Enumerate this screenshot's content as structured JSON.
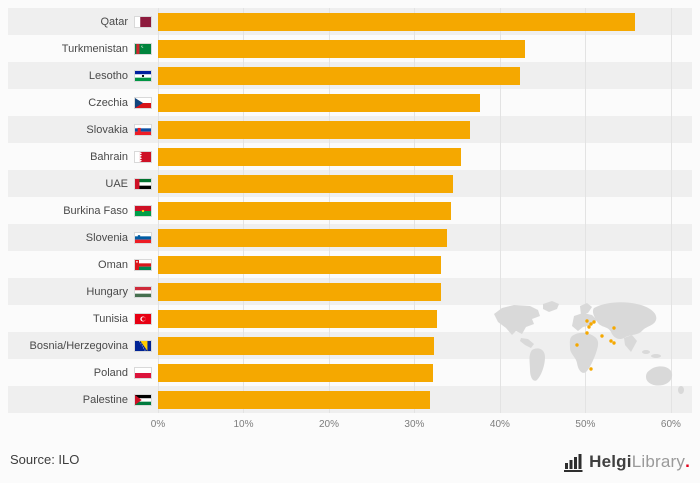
{
  "chart_data": {
    "type": "bar",
    "orientation": "horizontal",
    "title": "",
    "xlabel": "",
    "ylabel": "",
    "xlim": [
      0,
      60
    ],
    "plot_max": 62,
    "grid": true,
    "legend": false,
    "bar_color": "#f5a800",
    "stripe_color": "#efefef",
    "x_ticks": [
      "0%",
      "10%",
      "20%",
      "30%",
      "40%",
      "50%",
      "60%"
    ],
    "x_tick_values": [
      0,
      10,
      20,
      30,
      40,
      50,
      60
    ],
    "categories": [
      "Qatar",
      "Turkmenistan",
      "Lesotho",
      "Czechia",
      "Slovakia",
      "Bahrain",
      "UAE",
      "Burkina Faso",
      "Slovenia",
      "Oman",
      "Hungary",
      "Tunisia",
      "Bosnia/Herzegovina",
      "Poland",
      "Palestine"
    ],
    "values": [
      55.4,
      42.6,
      42.0,
      37.4,
      36.2,
      35.2,
      34.3,
      34.0,
      33.5,
      32.9,
      32.8,
      32.4,
      32.1,
      31.9,
      31.6
    ],
    "flags": [
      {
        "name": "qatar-flag-icon",
        "rects": [
          [
            0,
            0,
            18,
            12,
            "#8d1b3d"
          ],
          [
            0,
            0,
            6,
            12,
            "#ffffff"
          ]
        ],
        "tris": [
          [
            [
              [
                6,
                0
              ],
              [
                8.5,
                1.5
              ],
              [
                6,
                3
              ]
            ],
            "#8d1b3d"
          ],
          [
            [
              [
                6,
                3
              ],
              [
                8.5,
                4.5
              ],
              [
                6,
                6
              ]
            ],
            "#8d1b3d"
          ],
          [
            [
              [
                6,
                6
              ],
              [
                8.5,
                7.5
              ],
              [
                6,
                9
              ]
            ],
            "#8d1b3d"
          ],
          [
            [
              [
                6,
                9
              ],
              [
                8.5,
                10.5
              ],
              [
                6,
                12
              ]
            ],
            "#8d1b3d"
          ]
        ]
      },
      {
        "name": "turkmenistan-flag-icon",
        "rects": [
          [
            0,
            0,
            18,
            12,
            "#00843d"
          ],
          [
            1.5,
            0,
            3.5,
            12,
            "#d22630"
          ]
        ],
        "dots": [
          [
            8.5,
            3,
            1.3,
            "#ffffff"
          ],
          [
            9.3,
            2.6,
            1.3,
            "#00843d"
          ]
        ]
      },
      {
        "name": "lesotho-flag-icon",
        "rects": [
          [
            0,
            0,
            18,
            4,
            "#00209f"
          ],
          [
            0,
            4,
            18,
            4,
            "#ffffff"
          ],
          [
            0,
            8,
            18,
            4,
            "#009543"
          ]
        ],
        "dots": [
          [
            9,
            6,
            1.3,
            "#000000"
          ]
        ]
      },
      {
        "name": "czechia-flag-icon",
        "rects": [
          [
            0,
            0,
            18,
            6,
            "#ffffff"
          ],
          [
            0,
            6,
            18,
            6,
            "#d7141a"
          ]
        ],
        "tris": [
          [
            [
              [
                0,
                0
              ],
              [
                9,
                6
              ],
              [
                0,
                12
              ]
            ],
            "#11457e"
          ]
        ]
      },
      {
        "name": "slovakia-flag-icon",
        "rects": [
          [
            0,
            0,
            18,
            4,
            "#ffffff"
          ],
          [
            0,
            4,
            18,
            4,
            "#0b4ea2"
          ],
          [
            0,
            8,
            18,
            4,
            "#ee1c25"
          ],
          [
            3,
            3.5,
            3.5,
            5,
            "#ee1c25"
          ]
        ]
      },
      {
        "name": "bahrain-flag-icon",
        "rects": [
          [
            0,
            0,
            18,
            12,
            "#ce1126"
          ],
          [
            0,
            0,
            5.5,
            12,
            "#ffffff"
          ]
        ],
        "tris": [
          [
            [
              [
                5.5,
                0
              ],
              [
                8,
                1.5
              ],
              [
                5.5,
                3
              ]
            ],
            "#ffffff"
          ],
          [
            [
              [
                5.5,
                3
              ],
              [
                8,
                4.5
              ],
              [
                5.5,
                6
              ]
            ],
            "#ffffff"
          ],
          [
            [
              [
                5.5,
                6
              ],
              [
                8,
                7.5
              ],
              [
                5.5,
                9
              ]
            ],
            "#ffffff"
          ],
          [
            [
              [
                5.5,
                9
              ],
              [
                8,
                10.5
              ],
              [
                5.5,
                12
              ]
            ],
            "#ffffff"
          ]
        ]
      },
      {
        "name": "uae-flag-icon",
        "rects": [
          [
            0,
            0,
            18,
            4,
            "#00732f"
          ],
          [
            0,
            4,
            18,
            4,
            "#ffffff"
          ],
          [
            0,
            8,
            18,
            4,
            "#000000"
          ],
          [
            0,
            0,
            5,
            12,
            "#ce1126"
          ]
        ]
      },
      {
        "name": "burkina-faso-flag-icon",
        "rects": [
          [
            0,
            0,
            18,
            6,
            "#ce1126"
          ],
          [
            0,
            6,
            18,
            6,
            "#009e49"
          ]
        ],
        "dots": [
          [
            9,
            6,
            1.4,
            "#fcd116"
          ]
        ]
      },
      {
        "name": "slovenia-flag-icon",
        "rects": [
          [
            0,
            0,
            18,
            4,
            "#ffffff"
          ],
          [
            0,
            4,
            18,
            4,
            "#005da4"
          ],
          [
            0,
            8,
            18,
            4,
            "#ed1c24"
          ],
          [
            3.2,
            2.6,
            2.6,
            3.4,
            "#005da4"
          ]
        ]
      },
      {
        "name": "oman-flag-icon",
        "rects": [
          [
            0,
            0,
            18,
            4,
            "#ffffff"
          ],
          [
            0,
            4,
            18,
            4,
            "#db161b"
          ],
          [
            0,
            8,
            18,
            4,
            "#008751"
          ],
          [
            0,
            0,
            4.5,
            12,
            "#db161b"
          ]
        ],
        "dots": [
          [
            2.2,
            2.2,
            1,
            "#ffffff"
          ]
        ]
      },
      {
        "name": "hungary-flag-icon",
        "rects": [
          [
            0,
            0,
            18,
            4,
            "#ce2939"
          ],
          [
            0,
            4,
            18,
            4,
            "#ffffff"
          ],
          [
            0,
            8,
            18,
            4,
            "#477050"
          ]
        ]
      },
      {
        "name": "tunisia-flag-icon",
        "rects": [
          [
            0,
            0,
            18,
            12,
            "#e70013"
          ]
        ],
        "dots": [
          [
            9,
            6,
            3,
            "#ffffff"
          ],
          [
            9.7,
            6,
            2.2,
            "#e70013"
          ]
        ]
      },
      {
        "name": "bosnia-herzegovina-flag-icon",
        "rects": [
          [
            0,
            0,
            18,
            12,
            "#002395"
          ]
        ],
        "tris": [
          [
            [
              [
                6,
                0
              ],
              [
                14,
                0
              ],
              [
                14,
                12
              ]
            ],
            "#fecb00"
          ]
        ],
        "dots": [
          [
            5.2,
            0.9,
            0.55,
            "#ffffff"
          ],
          [
            6.7,
            3.4,
            0.55,
            "#ffffff"
          ],
          [
            8.2,
            5.9,
            0.55,
            "#ffffff"
          ],
          [
            9.7,
            8.4,
            0.55,
            "#ffffff"
          ],
          [
            11.2,
            10.9,
            0.55,
            "#ffffff"
          ]
        ]
      },
      {
        "name": "poland-flag-icon",
        "rects": [
          [
            0,
            0,
            18,
            6,
            "#ffffff"
          ],
          [
            0,
            6,
            18,
            6,
            "#dc143c"
          ]
        ]
      },
      {
        "name": "palestine-flag-icon",
        "rects": [
          [
            0,
            0,
            18,
            4,
            "#000000"
          ],
          [
            0,
            4,
            18,
            4,
            "#ffffff"
          ],
          [
            0,
            8,
            18,
            4,
            "#007a3d"
          ]
        ],
        "tris": [
          [
            [
              [
                0,
                0
              ],
              [
                7.5,
                6
              ],
              [
                0,
                12
              ]
            ],
            "#ce1126"
          ]
        ]
      }
    ]
  },
  "footer": {
    "source": "Source: ILO",
    "brand_bold": "Helgi",
    "brand_light": "Library",
    "brand_dot": "."
  },
  "colors": {
    "accent": "#f5a800",
    "stripe": "#efefef",
    "gridline": "#e3e3e3",
    "brand_red": "#e2001a"
  }
}
